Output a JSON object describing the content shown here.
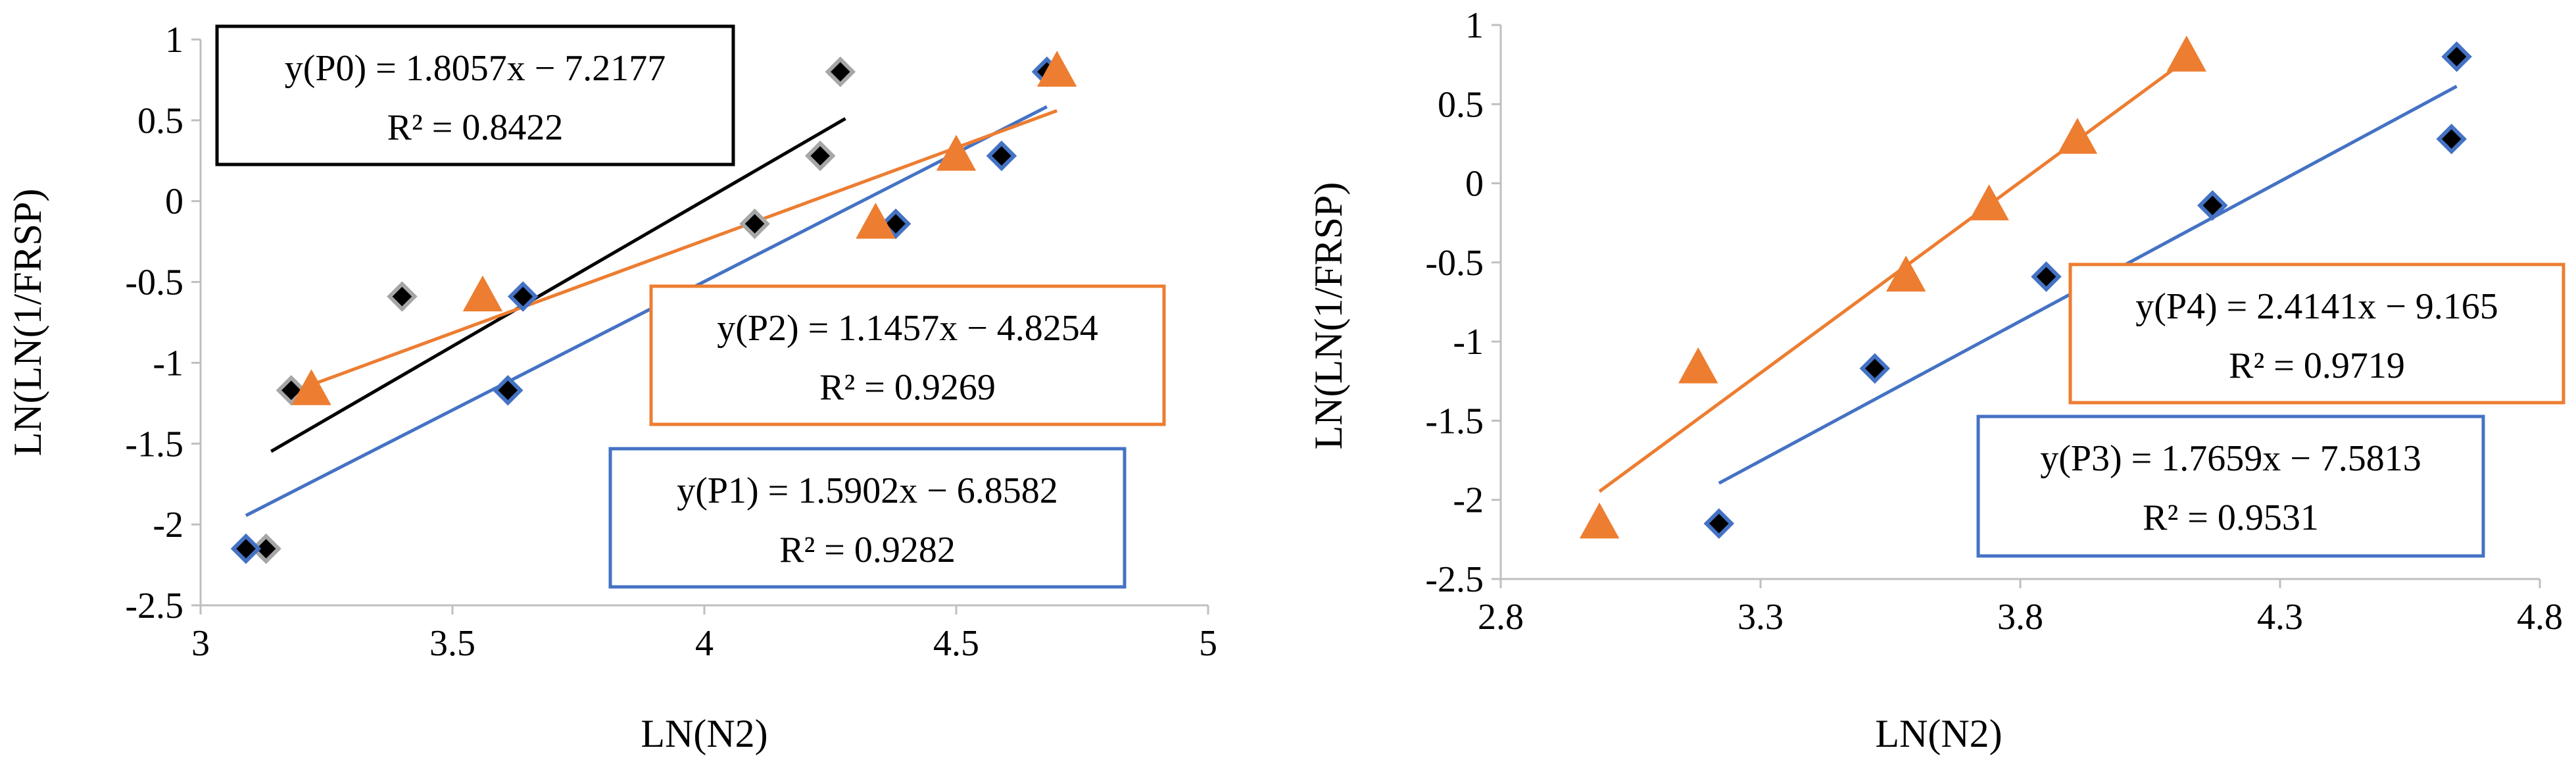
{
  "chart_data": [
    {
      "type": "scatter",
      "xlabel": "LN(N2)",
      "ylabel": "LN(LN(1/FRSP)",
      "xlim": [
        3,
        5
      ],
      "ylim": [
        -2.5,
        1
      ],
      "xticks": [
        "3",
        "3.5",
        "4",
        "4.5",
        "5"
      ],
      "yticks": [
        "1",
        "0.5",
        "0",
        "-0.5",
        "-1",
        "-1.5",
        "-2",
        "-2.5"
      ],
      "grid": false,
      "series": [
        {
          "name": "P0",
          "marker": "diamond",
          "color": "#000000",
          "edge": "#a6a6a6",
          "points": [
            [
              3.13,
              -2.15
            ],
            [
              3.18,
              -1.17
            ],
            [
              3.4,
              -0.59
            ],
            [
              4.1,
              -0.14
            ],
            [
              4.23,
              0.28
            ],
            [
              4.27,
              0.8
            ]
          ],
          "fit": {
            "slope": 1.8057,
            "intercept": -7.2177,
            "x_range": [
              3.14,
              4.28
            ],
            "color": "#000000"
          }
        },
        {
          "name": "P1",
          "marker": "diamond",
          "color": "#000000",
          "edge": "#4472c4",
          "points": [
            [
              3.09,
              -2.15
            ],
            [
              3.61,
              -1.17
            ],
            [
              3.64,
              -0.59
            ],
            [
              4.38,
              -0.14
            ],
            [
              4.59,
              0.28
            ],
            [
              4.68,
              0.8
            ]
          ],
          "fit": {
            "slope": 1.5902,
            "intercept": -6.8582,
            "x_range": [
              3.09,
              4.68
            ],
            "color": "#4472c4"
          }
        },
        {
          "name": "P2",
          "marker": "triangle",
          "color": "#ed7d31",
          "edge": "#ed7d31",
          "points": [
            [
              3.22,
              -1.17
            ],
            [
              3.56,
              -0.59
            ],
            [
              4.34,
              -0.14
            ],
            [
              4.5,
              0.28
            ],
            [
              4.7,
              0.8
            ]
          ],
          "fit": {
            "slope": 1.1457,
            "intercept": -4.8254,
            "x_range": [
              3.22,
              4.7
            ],
            "color": "#ed7d31"
          }
        }
      ],
      "annotations": [
        {
          "series": "P0",
          "equation": "y(P0) = 1.8057x  −  7.2177",
          "r2": "R² = 0.8422",
          "border": "#000000"
        },
        {
          "series": "P2",
          "equation": "y(P2) = 1.1457x  −  4.8254",
          "r2": "R² = 0.9269",
          "border": "#ed7d31"
        },
        {
          "series": "P1",
          "equation": "y(P1) = 1.5902x  −  6.8582",
          "r2": "R² = 0.9282",
          "border": "#4472c4"
        }
      ]
    },
    {
      "type": "scatter",
      "xlabel": "LN(N2)",
      "ylabel": "LN(LN(1/FRSP)",
      "xlim": [
        2.8,
        4.8
      ],
      "ylim": [
        -2.5,
        1
      ],
      "xticks": [
        "2.8",
        "3.3",
        "3.8",
        "4.3",
        "4.8"
      ],
      "yticks": [
        "1",
        "0.5",
        "0",
        "-0.5",
        "-1",
        "-1.5",
        "-2",
        "-2.5"
      ],
      "grid": false,
      "series": [
        {
          "name": "P3",
          "marker": "diamond",
          "color": "#000000",
          "edge": "#4472c4",
          "points": [
            [
              3.22,
              -2.15
            ],
            [
              3.52,
              -1.17
            ],
            [
              3.85,
              -0.59
            ],
            [
              4.17,
              -0.14
            ],
            [
              4.63,
              0.28
            ],
            [
              4.64,
              0.8
            ]
          ],
          "fit": {
            "slope": 1.7659,
            "intercept": -7.5813,
            "x_range": [
              3.22,
              4.64
            ],
            "color": "#4472c4"
          }
        },
        {
          "name": "P4",
          "marker": "triangle",
          "color": "#ed7d31",
          "edge": "#ed7d31",
          "points": [
            [
              2.99,
              -2.15
            ],
            [
              3.18,
              -1.17
            ],
            [
              3.58,
              -0.59
            ],
            [
              3.74,
              -0.14
            ],
            [
              3.91,
              0.28
            ],
            [
              4.12,
              0.8
            ]
          ],
          "fit": {
            "slope": 2.4141,
            "intercept": -9.165,
            "x_range": [
              2.99,
              4.12
            ],
            "color": "#ed7d31"
          }
        }
      ],
      "annotations": [
        {
          "series": "P4",
          "equation": "y(P4) = 2.4141x  −  9.165",
          "r2": "R² = 0.9719",
          "border": "#ed7d31"
        },
        {
          "series": "P3",
          "equation": "y(P3) = 1.7659x  −  7.5813",
          "r2": "R² = 0.9531",
          "border": "#4472c4"
        }
      ]
    }
  ]
}
